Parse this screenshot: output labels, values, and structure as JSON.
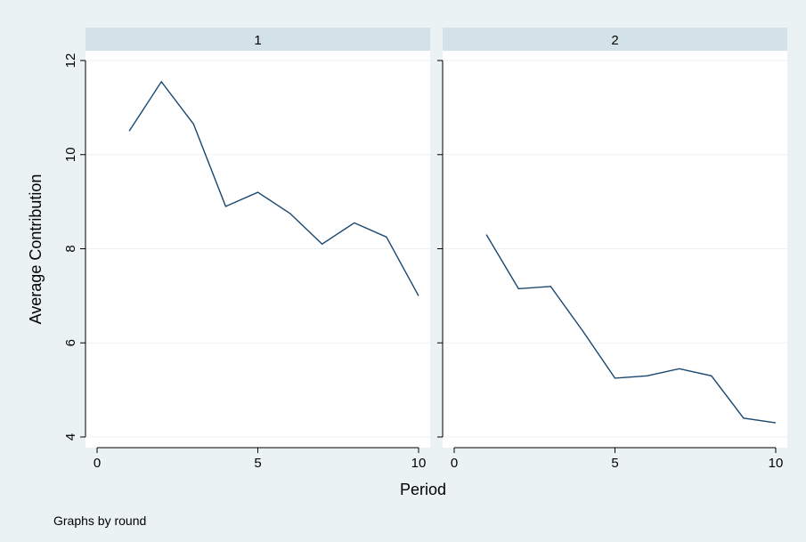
{
  "chart_data": {
    "type": "line",
    "layout": "by-panel",
    "ylabel": "Average Contribution",
    "xlabel": "Period",
    "note": "Graphs by round",
    "xlim": [
      0,
      10
    ],
    "ylim": [
      4,
      12
    ],
    "xticks": [
      0,
      5,
      10
    ],
    "yticks": [
      4,
      6,
      8,
      10,
      12
    ],
    "grid": true,
    "panels": [
      {
        "label": "1",
        "x": [
          1,
          2,
          3,
          4,
          5,
          6,
          7,
          8,
          9,
          10
        ],
        "y": [
          10.5,
          11.55,
          10.65,
          8.9,
          9.2,
          8.75,
          8.1,
          8.55,
          8.25,
          7.0
        ]
      },
      {
        "label": "2",
        "x": [
          1,
          2,
          3,
          4,
          5,
          6,
          7,
          8,
          9,
          10
        ],
        "y": [
          8.3,
          7.15,
          7.2,
          6.25,
          5.25,
          5.3,
          5.45,
          5.3,
          4.4,
          4.3
        ]
      }
    ],
    "colors": {
      "line": "#1a476f",
      "strip": "#d3e2e9",
      "background": "#eaf2f3",
      "plot": "#ffffff"
    }
  }
}
